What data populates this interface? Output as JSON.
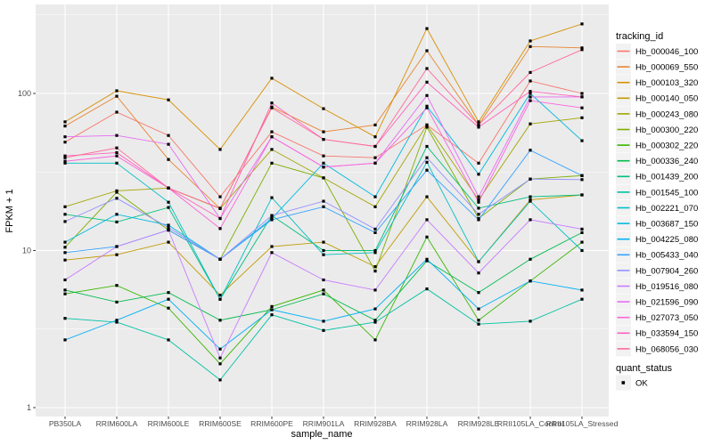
{
  "chart_data": {
    "type": "line",
    "title": "",
    "xlabel": "sample_name",
    "ylabel": "FPKM + 1",
    "y_scale": "log10",
    "y_ticks": [
      1,
      10,
      100
    ],
    "y_minor_ticks": [
      3.162,
      31.62,
      316.2
    ],
    "ylim": [
      1,
      380
    ],
    "grid": "on",
    "panel_bg": "#EBEBEB",
    "grid_color": "#FFFFFF",
    "point_color": "#000000",
    "legend_key_bg": "#F2F2F2",
    "categories": [
      "PB350LA",
      "RRIM600LA",
      "RRIM600LE",
      "RRIM600SE",
      "RRIM600PE",
      "RRIM901LA",
      "RRIM928BA",
      "RRIM928LA",
      "RRIM928LE",
      "RRII105LA_Control",
      "RRII105LA_Stressed"
    ],
    "series": [
      {
        "name": "Hb_000046_100",
        "color": "#F8766D",
        "values": [
          49,
          76,
          54,
          22,
          57,
          40,
          39,
          63,
          36,
          120,
          100
        ]
      },
      {
        "name": "Hb_000069_550",
        "color": "#EA8331",
        "values": [
          62,
          96,
          38,
          18.5,
          82,
          57,
          63,
          187,
          63,
          199,
          195
        ]
      },
      {
        "name": "Hb_000103_320",
        "color": "#D89000",
        "values": [
          66,
          104,
          91,
          44,
          125,
          80,
          53,
          259,
          66,
          216,
          277
        ]
      },
      {
        "name": "Hb_000140_050",
        "color": "#C09B00",
        "values": [
          8.7,
          9.4,
          11.3,
          5.2,
          10.6,
          11.3,
          7.9,
          22,
          8.5,
          21,
          22.6
        ]
      },
      {
        "name": "Hb_000243_080",
        "color": "#A3A500",
        "values": [
          19,
          24,
          25,
          18.5,
          44,
          29,
          19,
          63,
          21,
          64,
          70
        ]
      },
      {
        "name": "Hb_000300_220",
        "color": "#7CAE00",
        "values": [
          10.5,
          23.5,
          13.5,
          8.8,
          36,
          29,
          7.4,
          61,
          16,
          28.5,
          30
        ]
      },
      {
        "name": "Hb_000302_220",
        "color": "#39B600",
        "values": [
          5.3,
          6.0,
          4.3,
          1.9,
          4.4,
          5.6,
          2.7,
          12.2,
          3.6,
          6.4,
          11.3
        ]
      },
      {
        "name": "Hb_000336_240",
        "color": "#00BB4E",
        "values": [
          5.6,
          4.7,
          5.4,
          3.6,
          4.2,
          5.3,
          3.6,
          8.6,
          5.4,
          8.8,
          13
        ]
      },
      {
        "name": "Hb_001439_200",
        "color": "#00BF7D",
        "values": [
          17,
          15.2,
          18.8,
          4.9,
          16.7,
          10,
          10,
          46,
          18.6,
          22,
          22.6
        ]
      },
      {
        "name": "Hb_001545_100",
        "color": "#00C1A3",
        "values": [
          3.7,
          3.5,
          2.7,
          1.5,
          3.9,
          3.1,
          3.5,
          5.7,
          3.4,
          3.55,
          4.9
        ]
      },
      {
        "name": "Hb_002221_070",
        "color": "#00BFC4",
        "values": [
          36,
          36,
          20.3,
          4.9,
          21.7,
          9.4,
          9.7,
          36.5,
          8.5,
          20.6,
          10
        ]
      },
      {
        "name": "Hb_003687_150",
        "color": "#00BAE0",
        "values": [
          11.3,
          17,
          14.5,
          8.8,
          16,
          36,
          22,
          83,
          30.6,
          100,
          50
        ]
      },
      {
        "name": "Hb_004225_080",
        "color": "#00B0F6",
        "values": [
          2.7,
          3.6,
          4.9,
          2.36,
          4.2,
          3.55,
          4.25,
          8.8,
          4.25,
          6.4,
          5.6
        ]
      },
      {
        "name": "Hb_005433_040",
        "color": "#35A2FF",
        "values": [
          9.7,
          10.6,
          13.5,
          8.8,
          15.7,
          19,
          13,
          32.5,
          15.7,
          43.5,
          30
        ]
      },
      {
        "name": "Hb_007904_260",
        "color": "#9590FF",
        "values": [
          15.3,
          21.5,
          14,
          8.8,
          16.7,
          20.6,
          13.7,
          39,
          17,
          28.5,
          28.3
        ]
      },
      {
        "name": "Hb_019516_080",
        "color": "#C77CFF",
        "values": [
          6.5,
          10.6,
          13.5,
          2.07,
          9.7,
          6.5,
          5.6,
          15.7,
          7.2,
          15.7,
          13.7
        ]
      },
      {
        "name": "Hb_021596_090",
        "color": "#E76BF3",
        "values": [
          53,
          54,
          47.5,
          16,
          53,
          34,
          36,
          97,
          22,
          95,
          95
        ]
      },
      {
        "name": "Hb_027073_050",
        "color": "#FA62DB",
        "values": [
          37,
          40,
          25,
          13.8,
          53,
          34,
          36,
          81,
          20.3,
          90,
          81
        ]
      },
      {
        "name": "Hb_033594_150",
        "color": "#FF62BC",
        "values": [
          40,
          42,
          25,
          16,
          87,
          51,
          46,
          118,
          61,
          103,
          95
        ]
      },
      {
        "name": "Hb_068056_030",
        "color": "#FF6A98",
        "values": [
          39,
          45,
          25,
          18.6,
          81,
          51,
          46,
          144,
          63,
          136,
          190
        ]
      }
    ],
    "legend": {
      "series_title": "tracking_id",
      "shape_title": "quant_status",
      "shape_items": [
        {
          "label": "OK"
        }
      ]
    }
  }
}
